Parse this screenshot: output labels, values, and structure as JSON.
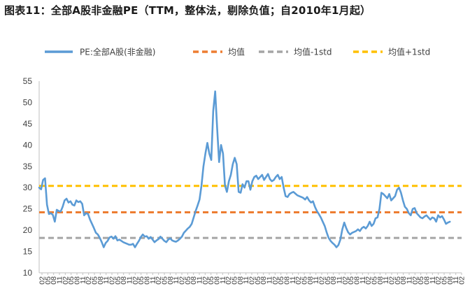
{
  "title": "图表11：全部A股非金融PE（TTM，整体法，剔除负值；自2010年1月起）",
  "chart_data": {
    "type": "line",
    "title": "图表11：全部A股非金融PE（TTM，整体法，剔除负值；自2010年1月起）",
    "xlabel": "",
    "ylabel": "",
    "ylim": [
      10,
      55
    ],
    "yticks": [
      10,
      15,
      20,
      25,
      30,
      35,
      40,
      45,
      50,
      55
    ],
    "grid": false,
    "legend_position": "top",
    "x_tick_labels": [
      "02",
      "05",
      "08",
      "11",
      "02",
      "05",
      "08",
      "11",
      "02",
      "05",
      "08",
      "11",
      "02",
      "05",
      "08",
      "11",
      "02",
      "05",
      "08",
      "11",
      "02",
      "05",
      "08",
      "11",
      "02",
      "05",
      "08",
      "11",
      "02",
      "05",
      "08",
      "11",
      "02",
      "05",
      "08",
      "11",
      "02",
      "05",
      "08",
      "11",
      "02",
      "05",
      "08",
      "11",
      "02",
      "05",
      "08",
      "11",
      "02",
      "05",
      "08",
      "11",
      "02",
      "05",
      "08",
      "11",
      "02",
      "05",
      "08",
      "11",
      "02",
      "05",
      "08",
      "11",
      "02",
      "05",
      "08",
      "11",
      "02",
      "05",
      "08",
      "11",
      "02"
    ],
    "x_start": "2010-02",
    "x_end": "2028-02",
    "series": [
      {
        "name": "PE:全部A股(非金融)",
        "color": "#5b9bd5",
        "style": "solid",
        "points": [
          [
            "2010-02",
            30.0
          ],
          [
            "2010-03",
            29.6
          ],
          [
            "2010-04",
            31.8
          ],
          [
            "2010-05",
            32.2
          ],
          [
            "2010-06",
            26.0
          ],
          [
            "2010-07",
            23.8
          ],
          [
            "2010-08",
            24.0
          ],
          [
            "2010-09",
            23.6
          ],
          [
            "2010-10",
            22.0
          ],
          [
            "2010-11",
            24.8
          ],
          [
            "2010-12",
            24.5
          ],
          [
            "2011-01",
            24.4
          ],
          [
            "2011-02",
            25.5
          ],
          [
            "2011-03",
            27.0
          ],
          [
            "2011-04",
            27.4
          ],
          [
            "2011-05",
            26.5
          ],
          [
            "2011-06",
            26.8
          ],
          [
            "2011-07",
            26.0
          ],
          [
            "2011-08",
            25.8
          ],
          [
            "2011-09",
            27.0
          ],
          [
            "2011-10",
            26.6
          ],
          [
            "2011-11",
            26.8
          ],
          [
            "2011-12",
            26.2
          ],
          [
            "2012-01",
            23.5
          ],
          [
            "2012-02",
            24.0
          ],
          [
            "2012-03",
            23.8
          ],
          [
            "2012-04",
            22.5
          ],
          [
            "2012-05",
            21.5
          ],
          [
            "2012-06",
            20.5
          ],
          [
            "2012-07",
            19.4
          ],
          [
            "2012-08",
            19.0
          ],
          [
            "2012-09",
            18.2
          ],
          [
            "2012-10",
            17.2
          ],
          [
            "2012-11",
            16.0
          ],
          [
            "2012-12",
            17.0
          ],
          [
            "2013-01",
            17.5
          ],
          [
            "2013-02",
            18.3
          ],
          [
            "2013-03",
            18.5
          ],
          [
            "2013-04",
            18.0
          ],
          [
            "2013-05",
            18.6
          ],
          [
            "2013-06",
            17.6
          ],
          [
            "2013-07",
            17.8
          ],
          [
            "2013-08",
            17.5
          ],
          [
            "2013-09",
            17.2
          ],
          [
            "2013-10",
            17.0
          ],
          [
            "2013-11",
            16.8
          ],
          [
            "2013-12",
            16.6
          ],
          [
            "2014-01",
            16.6
          ],
          [
            "2014-02",
            16.8
          ],
          [
            "2014-03",
            16.0
          ],
          [
            "2014-04",
            16.8
          ],
          [
            "2014-05",
            17.5
          ],
          [
            "2014-06",
            18.4
          ],
          [
            "2014-07",
            19.0
          ],
          [
            "2014-08",
            18.5
          ],
          [
            "2014-09",
            18.6
          ],
          [
            "2014-10",
            18.0
          ],
          [
            "2014-11",
            18.4
          ],
          [
            "2014-12",
            17.8
          ],
          [
            "2015-01",
            17.2
          ],
          [
            "2015-02",
            17.6
          ],
          [
            "2015-03",
            17.9
          ],
          [
            "2015-04",
            18.5
          ],
          [
            "2015-05",
            18.0
          ],
          [
            "2015-06",
            17.5
          ],
          [
            "2015-07",
            17.2
          ],
          [
            "2015-08",
            17.8
          ],
          [
            "2015-09",
            18.1
          ],
          [
            "2015-10",
            17.6
          ],
          [
            "2015-11",
            17.4
          ],
          [
            "2015-12",
            17.3
          ],
          [
            "2016-01",
            17.6
          ],
          [
            "2016-02",
            18.0
          ],
          [
            "2016-03",
            18.5
          ],
          [
            "2016-04",
            19.4
          ],
          [
            "2016-05",
            19.9
          ],
          [
            "2016-06",
            20.4
          ],
          [
            "2016-07",
            20.8
          ],
          [
            "2016-08",
            21.5
          ],
          [
            "2016-09",
            23.0
          ],
          [
            "2016-10",
            24.5
          ],
          [
            "2016-11",
            25.8
          ],
          [
            "2016-12",
            27.2
          ],
          [
            "2017-01",
            30.5
          ],
          [
            "2017-02",
            35.0
          ],
          [
            "2017-03",
            38.0
          ],
          [
            "2017-04",
            40.5
          ],
          [
            "2017-05",
            38.0
          ],
          [
            "2017-06",
            36.5
          ],
          [
            "2017-07",
            48.0
          ],
          [
            "2017-08",
            52.6
          ],
          [
            "2017-09",
            44.0
          ],
          [
            "2017-10",
            36.0
          ],
          [
            "2017-11",
            40.0
          ],
          [
            "2017-12",
            38.0
          ],
          [
            "2018-01",
            30.5
          ],
          [
            "2018-02",
            29.0
          ],
          [
            "2018-03",
            31.5
          ],
          [
            "2018-04",
            33.0
          ],
          [
            "2018-05",
            35.5
          ],
          [
            "2018-06",
            37.0
          ],
          [
            "2018-07",
            35.5
          ],
          [
            "2018-08",
            29.0
          ],
          [
            "2018-09",
            28.8
          ],
          [
            "2018-10",
            30.8
          ],
          [
            "2018-11",
            30.0
          ],
          [
            "2018-12",
            31.5
          ],
          [
            "2019-01",
            31.5
          ],
          [
            "2019-02",
            29.5
          ],
          [
            "2019-03",
            31.5
          ],
          [
            "2019-04",
            32.5
          ],
          [
            "2019-05",
            32.8
          ],
          [
            "2019-06",
            32.0
          ],
          [
            "2019-07",
            32.5
          ],
          [
            "2019-08",
            33.0
          ],
          [
            "2019-09",
            31.8
          ],
          [
            "2019-10",
            32.5
          ],
          [
            "2019-11",
            33.2
          ],
          [
            "2019-12",
            32.0
          ],
          [
            "2020-01",
            31.5
          ],
          [
            "2020-02",
            31.8
          ],
          [
            "2020-03",
            32.5
          ],
          [
            "2020-04",
            33.0
          ],
          [
            "2020-05",
            32.0
          ],
          [
            "2020-06",
            32.5
          ],
          [
            "2020-07",
            30.0
          ],
          [
            "2020-08",
            28.0
          ],
          [
            "2020-09",
            27.8
          ],
          [
            "2020-10",
            28.5
          ],
          [
            "2020-11",
            28.8
          ],
          [
            "2020-12",
            29.0
          ],
          [
            "2021-01",
            28.6
          ],
          [
            "2021-02",
            28.2
          ],
          [
            "2021-03",
            28.0
          ],
          [
            "2021-04",
            27.8
          ],
          [
            "2021-05",
            27.6
          ],
          [
            "2021-06",
            27.2
          ],
          [
            "2021-07",
            27.8
          ],
          [
            "2021-08",
            27.0
          ],
          [
            "2021-09",
            26.5
          ],
          [
            "2021-10",
            26.8
          ],
          [
            "2021-11",
            25.5
          ],
          [
            "2021-12",
            24.5
          ],
          [
            "2022-01",
            23.8
          ],
          [
            "2022-02",
            23.0
          ],
          [
            "2022-03",
            22.0
          ],
          [
            "2022-04",
            21.0
          ],
          [
            "2022-05",
            19.5
          ],
          [
            "2022-06",
            18.2
          ],
          [
            "2022-07",
            17.5
          ],
          [
            "2022-08",
            17.0
          ],
          [
            "2022-09",
            16.6
          ],
          [
            "2022-10",
            16.0
          ],
          [
            "2022-11",
            16.5
          ],
          [
            "2022-12",
            17.8
          ],
          [
            "2023-01",
            20.2
          ],
          [
            "2023-02",
            21.8
          ],
          [
            "2023-03",
            20.5
          ],
          [
            "2023-04",
            19.5
          ],
          [
            "2023-05",
            19.0
          ],
          [
            "2023-06",
            19.4
          ],
          [
            "2023-07",
            19.6
          ],
          [
            "2023-08",
            19.8
          ],
          [
            "2023-09",
            20.2
          ],
          [
            "2023-10",
            19.8
          ],
          [
            "2023-11",
            20.5
          ],
          [
            "2023-12",
            20.8
          ],
          [
            "2024-01",
            20.4
          ],
          [
            "2024-02",
            21.0
          ],
          [
            "2024-03",
            22.0
          ],
          [
            "2024-04",
            21.0
          ],
          [
            "2024-05",
            21.5
          ],
          [
            "2024-06",
            22.8
          ],
          [
            "2024-07",
            23.0
          ],
          [
            "2024-08",
            25.0
          ],
          [
            "2024-09",
            28.8
          ],
          [
            "2024-10",
            28.5
          ],
          [
            "2024-11",
            28.0
          ],
          [
            "2024-12",
            27.5
          ],
          [
            "2025-01",
            28.5
          ],
          [
            "2025-02",
            27.0
          ],
          [
            "2025-03",
            27.5
          ],
          [
            "2025-04",
            28.0
          ],
          [
            "2025-05",
            29.5
          ],
          [
            "2025-06",
            30.0
          ],
          [
            "2025-07",
            28.8
          ],
          [
            "2025-08",
            27.0
          ],
          [
            "2025-09",
            25.5
          ],
          [
            "2025-10",
            25.0
          ],
          [
            "2025-11",
            24.0
          ],
          [
            "2025-12",
            23.5
          ],
          [
            "2026-01",
            25.0
          ],
          [
            "2026-02",
            25.2
          ],
          [
            "2026-03",
            24.0
          ],
          [
            "2026-04",
            23.5
          ],
          [
            "2026-05",
            23.0
          ],
          [
            "2026-06",
            22.8
          ],
          [
            "2026-07",
            23.2
          ],
          [
            "2026-08",
            23.5
          ],
          [
            "2026-09",
            23.0
          ],
          [
            "2026-10",
            22.5
          ],
          [
            "2026-11",
            23.0
          ],
          [
            "2026-12",
            22.8
          ],
          [
            "2027-01",
            22.0
          ],
          [
            "2027-02",
            23.5
          ],
          [
            "2027-03",
            23.0
          ],
          [
            "2027-04",
            23.3
          ],
          [
            "2027-05",
            22.5
          ],
          [
            "2027-06",
            21.5
          ],
          [
            "2027-07",
            21.8
          ],
          [
            "2027-08",
            22.0
          ]
        ]
      },
      {
        "name": "均值",
        "color": "#ed7d31",
        "style": "dashed",
        "value": 24.2
      },
      {
        "name": "均值-1std",
        "color": "#a5a5a5",
        "style": "dashed",
        "value": 18.2
      },
      {
        "name": "均值+1std",
        "color": "#ffc000",
        "style": "dashed",
        "value": 30.4
      }
    ]
  }
}
